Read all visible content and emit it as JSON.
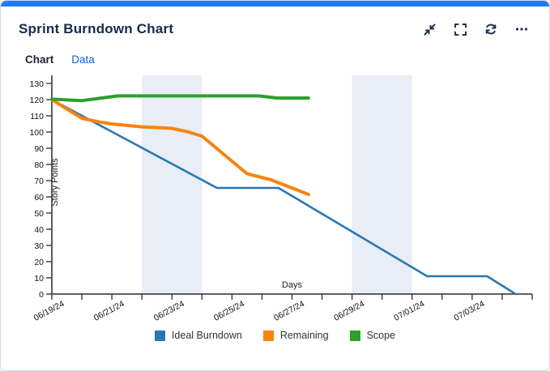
{
  "header": {
    "title": "Sprint Burndown Chart",
    "icons": [
      "minimize-icon",
      "fullscreen-icon",
      "refresh-icon",
      "more-icon"
    ],
    "accent_bar_color": "#1d7afc",
    "icon_color": "#1f3251"
  },
  "tabs": {
    "chart_label": "Chart",
    "data_label": "Data",
    "active_tab": "Chart",
    "link_color": "#0c66e4",
    "active_color": "#1c2433"
  },
  "chart_data": {
    "type": "line",
    "title": "Sprint Burndown Chart",
    "xlabel": "Days",
    "ylabel": "Story Points",
    "x_unit": "days since 06/19/24",
    "xlim": [
      0,
      16
    ],
    "ylim": [
      0,
      130
    ],
    "y_ticks": [
      0,
      10,
      20,
      30,
      40,
      50,
      60,
      70,
      80,
      90,
      100,
      110,
      120,
      130
    ],
    "x_tick_labels": [
      {
        "day": 0,
        "label": "06/19/24"
      },
      {
        "day": 2,
        "label": "06/21/24"
      },
      {
        "day": 4,
        "label": "06/23/24"
      },
      {
        "day": 6,
        "label": "06/25/24"
      },
      {
        "day": 8,
        "label": "06/27/24"
      },
      {
        "day": 10,
        "label": "06/29/24"
      },
      {
        "day": 12,
        "label": "07/01/24"
      },
      {
        "day": 14,
        "label": "07/03/24"
      }
    ],
    "minor_tick_every_day": true,
    "weekend_bands": [
      [
        3,
        5
      ],
      [
        10,
        12
      ]
    ],
    "band_color": "#e9edf6",
    "axis_color": "#2b2b2b",
    "tick_label_color": "#111111",
    "grid": false,
    "legend_position": "bottom",
    "series": [
      {
        "name": "Ideal Burndown",
        "color": "#2878b4",
        "width": 2.6,
        "points": [
          [
            0,
            120
          ],
          [
            5.5,
            65.5
          ],
          [
            7.55,
            65.5
          ],
          [
            12.5,
            11
          ],
          [
            14.5,
            11
          ],
          [
            15.45,
            0
          ]
        ]
      },
      {
        "name": "Remaining",
        "color": "#f8830d",
        "width": 4,
        "points": [
          [
            0,
            120
          ],
          [
            1,
            108.5
          ],
          [
            1.5,
            106.5
          ],
          [
            2,
            105
          ],
          [
            3,
            103.2
          ],
          [
            4,
            102.3
          ],
          [
            4.5,
            100.3
          ],
          [
            5,
            97.5
          ],
          [
            6.5,
            74.3
          ],
          [
            7.3,
            70.5
          ],
          [
            8.55,
            61.5
          ]
        ]
      },
      {
        "name": "Scope",
        "color": "#2ca02c",
        "width": 4,
        "points": [
          [
            0,
            120.3
          ],
          [
            1,
            119.4
          ],
          [
            2.2,
            122.3
          ],
          [
            6.9,
            122.3
          ],
          [
            7.5,
            121
          ],
          [
            8.55,
            121
          ]
        ]
      }
    ]
  }
}
